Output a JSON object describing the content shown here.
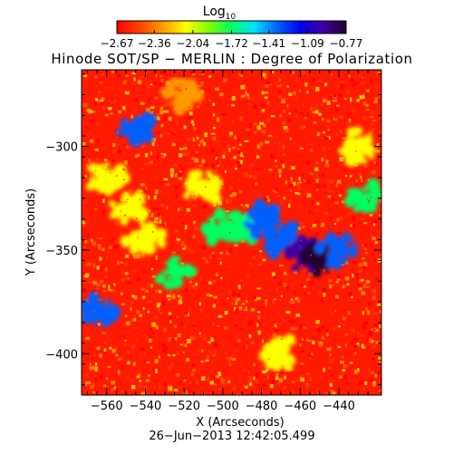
{
  "chart_data": {
    "type": "heatmap",
    "title": "Hinode SOT/SP − MERLIN : Degree of Polarization",
    "colorbar": {
      "label_base": "Log",
      "label_sub": "10",
      "ticks": [
        "−2.67",
        "−2.36",
        "−2.04",
        "−1.72",
        "−1.41",
        "−1.09",
        "−0.77"
      ],
      "tick_values": [
        -2.67,
        -2.36,
        -2.04,
        -1.72,
        -1.41,
        -1.09,
        -0.77
      ],
      "range": [
        -2.67,
        -0.77
      ],
      "colors": [
        "#ff0000",
        "#ff4400",
        "#ff9900",
        "#ffff00",
        "#80ff00",
        "#00ff60",
        "#00e0ff",
        "#0060ff",
        "#0000ee",
        "#4000a0",
        "#200030"
      ]
    },
    "xlabel": "X (Arcseconds)",
    "ylabel": "Y (Arcseconds)",
    "xlim": [
      -573,
      -418
    ],
    "ylim": [
      -420,
      -263
    ],
    "xticks": [
      -560,
      -540,
      -520,
      -500,
      -480,
      -460,
      -440
    ],
    "xtick_labels": [
      "−560",
      "−540",
      "−520",
      "−500",
      "−480",
      "−460",
      "−440"
    ],
    "yticks": [
      -300,
      -350,
      -400
    ],
    "ytick_labels": [
      "−300",
      "−350",
      "−400"
    ],
    "features": [
      {
        "x": -500,
        "y": -340,
        "value": -1.72
      },
      {
        "x": -490,
        "y": -340,
        "value": -1.72
      },
      {
        "x": -480,
        "y": -335,
        "value": -1.41
      },
      {
        "x": -470,
        "y": -345,
        "value": -1.41
      },
      {
        "x": -458,
        "y": -352,
        "value": -0.9
      },
      {
        "x": -450,
        "y": -355,
        "value": -0.77
      },
      {
        "x": -440,
        "y": -350,
        "value": -1.41
      },
      {
        "x": -550,
        "y": -330,
        "value": -2.04
      },
      {
        "x": -540,
        "y": -345,
        "value": -2.04
      },
      {
        "x": -560,
        "y": -315,
        "value": -2.04
      },
      {
        "x": -565,
        "y": -380,
        "value": -1.41
      },
      {
        "x": -545,
        "y": -290,
        "value": -1.41
      },
      {
        "x": -525,
        "y": -360,
        "value": -1.72
      },
      {
        "x": -510,
        "y": -320,
        "value": -2.04
      },
      {
        "x": -430,
        "y": -300,
        "value": -2.04
      },
      {
        "x": -425,
        "y": -325,
        "value": -1.72
      },
      {
        "x": -520,
        "y": -275,
        "value": -2.36
      },
      {
        "x": -470,
        "y": -400,
        "value": -2.04
      }
    ],
    "background_value": -2.67
  },
  "footer": {
    "timestamp": "26−Jun−2013 12:42:05.499"
  }
}
